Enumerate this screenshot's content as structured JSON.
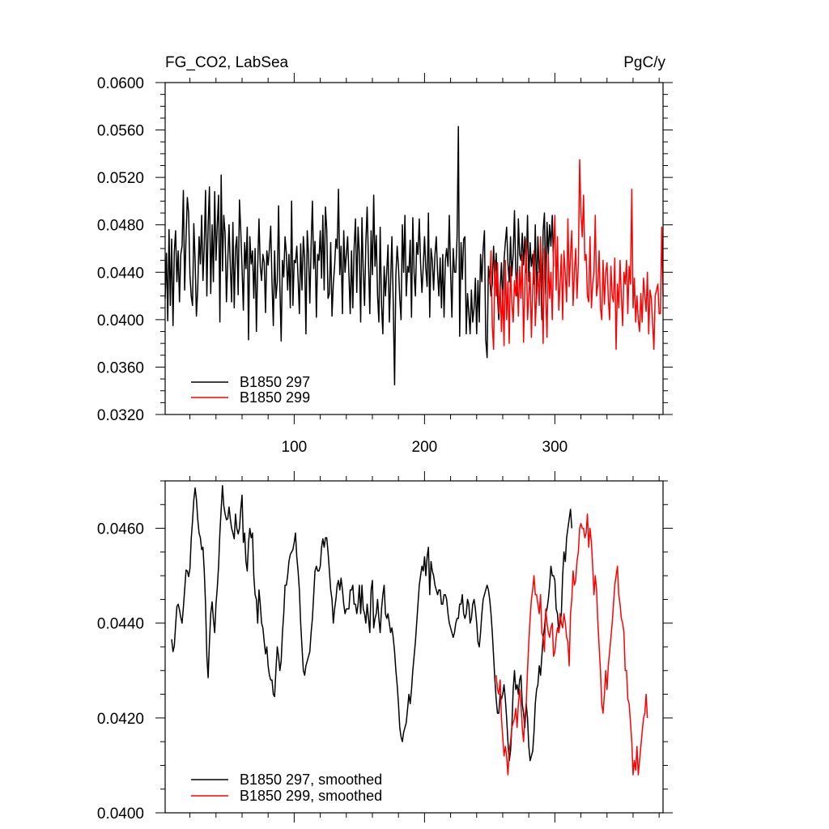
{
  "chart_data": [
    {
      "type": "line",
      "title_left": "FG_CO2, LabSea",
      "title_right": "PgC/y",
      "xlim": [
        1,
        383
      ],
      "ylim": [
        0.032,
        0.06
      ],
      "xticks": [
        {
          "value": 100,
          "label": "100"
        },
        {
          "value": 200,
          "label": "200"
        },
        {
          "value": 300,
          "label": "300"
        }
      ],
      "yticks": [
        {
          "value": 0.06,
          "label": "0.0600"
        },
        {
          "value": 0.056,
          "label": "0.0560"
        },
        {
          "value": 0.052,
          "label": "0.0520"
        },
        {
          "value": 0.048,
          "label": "0.0480"
        },
        {
          "value": 0.044,
          "label": "0.0440"
        },
        {
          "value": 0.04,
          "label": "0.0400"
        },
        {
          "value": 0.036,
          "label": "0.0360"
        },
        {
          "value": 0.032,
          "label": "0.0320"
        }
      ],
      "legend_position": "bottom-left",
      "series": [
        {
          "name": "B1850 297",
          "color": "#000000",
          "x_start": 1,
          "values": [
            0.0418,
            0.0456,
            0.0399,
            0.0476,
            0.0412,
            0.0468,
            0.0395,
            0.0457,
            0.0475,
            0.0432,
            0.0458,
            0.0415,
            0.0455,
            0.0462,
            0.0509,
            0.0425,
            0.047,
            0.0503,
            0.049,
            0.0438,
            0.042,
            0.0412,
            0.0481,
            0.045,
            0.0403,
            0.0425,
            0.047,
            0.0447,
            0.0488,
            0.0433,
            0.0462,
            0.0509,
            0.042,
            0.048,
            0.0512,
            0.0422,
            0.048,
            0.0432,
            0.0508,
            0.045,
            0.048,
            0.0505,
            0.0398,
            0.0522,
            0.0441,
            0.0488,
            0.0472,
            0.0415,
            0.0449,
            0.048,
            0.0445,
            0.0415,
            0.0482,
            0.041,
            0.046,
            0.047,
            0.0421,
            0.0501,
            0.0475,
            0.0443,
            0.0408,
            0.0465,
            0.0443,
            0.0478,
            0.0383,
            0.047,
            0.0447,
            0.0458,
            0.0418,
            0.046,
            0.039,
            0.0445,
            0.0485,
            0.0445,
            0.0433,
            0.0455,
            0.0448,
            0.0406,
            0.0458,
            0.0446,
            0.046,
            0.0479,
            0.0431,
            0.0395,
            0.0458,
            0.0418,
            0.0432,
            0.0496,
            0.0428,
            0.0382,
            0.045,
            0.0436,
            0.047,
            0.0456,
            0.0425,
            0.0455,
            0.041,
            0.05,
            0.0412,
            0.045,
            0.0448,
            0.0462,
            0.0435,
            0.0405,
            0.0464,
            0.0425,
            0.047,
            0.0452,
            0.0388,
            0.0475,
            0.0455,
            0.0414,
            0.0462,
            0.05,
            0.0443,
            0.0466,
            0.0402,
            0.0455,
            0.045,
            0.0475,
            0.0435,
            0.0488,
            0.0425,
            0.0495,
            0.0476,
            0.0418,
            0.0422,
            0.0465,
            0.0403,
            0.043,
            0.0445,
            0.0468,
            0.046,
            0.051,
            0.0438,
            0.0462,
            0.0405,
            0.0475,
            0.044,
            0.0455,
            0.047,
            0.0438,
            0.0405,
            0.0458,
            0.041,
            0.046,
            0.0485,
            0.0423,
            0.0478,
            0.0455,
            0.0398,
            0.0486,
            0.044,
            0.0412,
            0.0465,
            0.0495,
            0.0448,
            0.0405,
            0.0475,
            0.0438,
            0.0505,
            0.0445,
            0.0471,
            0.042,
            0.0398,
            0.0478,
            0.0412,
            0.0388,
            0.0445,
            0.042,
            0.044,
            0.0463,
            0.0398,
            0.0433,
            0.047,
            0.0415,
            0.0345,
            0.0438,
            0.0462,
            0.0445,
            0.0418,
            0.04,
            0.048,
            0.044,
            0.0488,
            0.042,
            0.0445,
            0.044,
            0.0467,
            0.0402,
            0.0486,
            0.044,
            0.042,
            0.0465,
            0.0455,
            0.0485,
            0.0448,
            0.0423,
            0.0445,
            0.047,
            0.0443,
            0.0428,
            0.049,
            0.0402,
            0.046,
            0.045,
            0.0425,
            0.0455,
            0.047,
            0.044,
            0.042,
            0.0452,
            0.041,
            0.0455,
            0.0402,
            0.045,
            0.046,
            0.0445,
            0.0488,
            0.044,
            0.0402,
            0.046,
            0.044,
            0.044,
            0.047,
            0.0563,
            0.0386,
            0.0465,
            0.0434,
            0.0468,
            0.047,
            0.0388,
            0.0422,
            0.0406,
            0.0388,
            0.0425,
            0.0398,
            0.041,
            0.0435,
            0.0388,
            0.0433,
            0.0398,
            0.0455,
            0.0432,
            0.046,
            0.0475,
            0.0383,
            0.0368,
            0.0445,
            0.0435,
            0.042,
            0.043,
            0.0462,
            0.0433,
            0.0456,
            0.042,
            0.04,
            0.0425,
            0.0448,
            0.0412,
            0.045,
            0.0465,
            0.0478,
            0.0448,
            0.0432,
            0.047,
            0.0437,
            0.0455,
            0.0492,
            0.044,
            0.042,
            0.0485,
            0.0455,
            0.045,
            0.0473,
            0.0446,
            0.047,
            0.044,
            0.0488,
            0.0432,
            0.0465,
            0.0445,
            0.0455,
            0.043,
            0.048,
            0.0418,
            0.047,
            0.044,
            0.0456,
            0.04,
            0.0475,
            0.049,
            0.0422,
            0.0482,
            0.0455,
            0.048,
            0.0462,
            0.0488,
            0.0445
          ]
        },
        {
          "name": "B1850 299",
          "color": "#ff0000",
          "x_start": 250,
          "values": [
            0.043,
            0.0458,
            0.0395,
            0.0375,
            0.045,
            0.042,
            0.0448,
            0.0405,
            0.043,
            0.039,
            0.0425,
            0.0378,
            0.045,
            0.04,
            0.0432,
            0.038,
            0.0445,
            0.0415,
            0.0398,
            0.0433,
            0.042,
            0.044,
            0.0403,
            0.0445,
            0.0418,
            0.0455,
            0.0381,
            0.0428,
            0.0468,
            0.04,
            0.042,
            0.044,
            0.0385,
            0.0425,
            0.0458,
            0.0395,
            0.042,
            0.044,
            0.0412,
            0.047,
            0.043,
            0.038,
            0.046,
            0.042,
            0.0385,
            0.0455,
            0.0418,
            0.044,
            0.04,
            0.0458,
            0.0488,
            0.0425,
            0.047,
            0.0408,
            0.043,
            0.0455,
            0.04,
            0.0458,
            0.0438,
            0.0415,
            0.0485,
            0.0428,
            0.0455,
            0.0475,
            0.0412,
            0.044,
            0.046,
            0.0418,
            0.0448,
            0.0535,
            0.049,
            0.047,
            0.0505,
            0.045,
            0.0455,
            0.042,
            0.0415,
            0.047,
            0.041,
            0.043,
            0.044,
            0.0488,
            0.042,
            0.043,
            0.0458,
            0.041,
            0.04,
            0.045,
            0.0413,
            0.044,
            0.0448,
            0.0418,
            0.04,
            0.0445,
            0.042,
            0.0415,
            0.0452,
            0.0375,
            0.043,
            0.041,
            0.045,
            0.042,
            0.0395,
            0.044,
            0.043,
            0.045,
            0.0405,
            0.0445,
            0.043,
            0.051,
            0.041,
            0.0435,
            0.0398,
            0.042,
            0.04,
            0.039,
            0.0422,
            0.0398,
            0.0435,
            0.042,
            0.0407,
            0.044,
            0.0388,
            0.0425,
            0.0418,
            0.0398,
            0.0375,
            0.042,
            0.0425,
            0.043,
            0.0405,
            0.0405,
            0.0478,
            0.042
          ]
        }
      ]
    },
    {
      "type": "line",
      "xlim": [
        1,
        383
      ],
      "ylim": [
        0.04,
        0.047
      ],
      "yticks": [
        {
          "value": 0.046,
          "label": "0.0460"
        },
        {
          "value": 0.044,
          "label": "0.0440"
        },
        {
          "value": 0.042,
          "label": "0.0420"
        },
        {
          "value": 0.04,
          "label": "0.0400"
        }
      ],
      "legend_position": "bottom-left",
      "series": [
        {
          "name": "B1850 297, smoothed",
          "color": "#000000",
          "x_start": 6,
          "values": [
            0.04366,
            0.0434,
            0.04352,
            0.04395,
            0.04435,
            0.0444,
            0.04428,
            0.04412,
            0.044,
            0.04433,
            0.0447,
            0.04512,
            0.0451,
            0.04498,
            0.04515,
            0.04578,
            0.04615,
            0.0466,
            0.04685,
            0.04662,
            0.0462,
            0.0459,
            0.0458,
            0.04555,
            0.0456,
            0.0451,
            0.0444,
            0.0433,
            0.04285,
            0.0436,
            0.0442,
            0.04445,
            0.04408,
            0.0438,
            0.0444,
            0.04475,
            0.0452,
            0.0459,
            0.0464,
            0.0469,
            0.04648,
            0.0463,
            0.04618,
            0.0462,
            0.04645,
            0.0462,
            0.046,
            0.0459,
            0.04578,
            0.0463,
            0.046,
            0.04588,
            0.046,
            0.0464,
            0.0467,
            0.0457,
            0.0459,
            0.0453,
            0.0451,
            0.0457,
            0.046,
            0.0458,
            0.0459,
            0.045,
            0.0446,
            0.0445,
            0.044,
            0.0447,
            0.0444,
            0.044,
            0.0439,
            0.0436,
            0.04335,
            0.0435,
            0.0431,
            0.0429,
            0.0428,
            0.0428,
            0.0425,
            0.04245,
            0.043,
            0.0435,
            0.0433,
            0.043,
            0.0432,
            0.0438,
            0.0442,
            0.0448,
            0.0448,
            0.045,
            0.0453,
            0.04545,
            0.0455,
            0.04555,
            0.0457,
            0.0459,
            0.0454,
            0.0451,
            0.0447,
            0.044,
            0.0435,
            0.043,
            0.0429,
            0.0431,
            0.0432,
            0.0433,
            0.0434,
            0.0438,
            0.0441,
            0.0446,
            0.0451,
            0.0452,
            0.0451,
            0.0451,
            0.0452,
            0.0456,
            0.04578,
            0.0456,
            0.0458,
            0.0458,
            0.0455,
            0.0451,
            0.0447,
            0.0445,
            0.044,
            0.0443,
            0.0445,
            0.0448,
            0.0449,
            0.0447,
            0.04495,
            0.0447,
            0.0444,
            0.0442,
            0.0443,
            0.0443,
            0.0443,
            0.0447,
            0.0447,
            0.0448,
            0.0444,
            0.0444,
            0.0442,
            0.0444,
            0.0448,
            0.0442,
            0.0448,
            0.0443,
            0.0442,
            0.044,
            0.0444,
            0.0441,
            0.0438,
            0.0447,
            0.0449,
            0.0439,
            0.0441,
            0.0442,
            0.0445,
            0.0441,
            0.0438,
            0.0443,
            0.0446,
            0.0448,
            0.0442,
            0.0441,
            0.0442,
            0.044,
            0.0438,
            0.0439,
            0.0437,
            0.0434,
            0.043,
            0.0427,
            0.0423,
            0.0418,
            0.0416,
            0.0415,
            0.0417,
            0.0418,
            0.0419,
            0.0422,
            0.0425,
            0.0423,
            0.0426,
            0.043,
            0.0433,
            0.0436,
            0.044,
            0.0444,
            0.0448,
            0.045,
            0.0452,
            0.0451,
            0.0454,
            0.045,
            0.0454,
            0.0456,
            0.0446,
            0.0453,
            0.0451,
            0.045,
            0.0448,
            0.0447,
            0.0446,
            0.0447,
            0.0447,
            0.0444,
            0.0444,
            0.0446,
            0.0446,
            0.0445,
            0.0442,
            0.044,
            0.0439,
            0.0438,
            0.0437,
            0.0438,
            0.044,
            0.0441,
            0.0441,
            0.0444,
            0.0444,
            0.0446,
            0.0442,
            0.0441,
            0.0442,
            0.0445,
            0.0444,
            0.044,
            0.0441,
            0.0444,
            0.0445,
            0.0443,
            0.044,
            0.0436,
            0.0435,
            0.0438,
            0.0442,
            0.0445,
            0.0446,
            0.0447,
            0.0448,
            0.0447,
            0.0445,
            0.0442,
            0.0438,
            0.0433,
            0.0428,
            0.0424,
            0.0421,
            0.0421,
            0.0425,
            0.0424,
            0.0425,
            0.0427,
            0.0424,
            0.042,
            0.0415,
            0.0411,
            0.0413,
            0.0418,
            0.0426,
            0.043,
            0.0426,
            0.0427,
            0.0425,
            0.0428,
            0.0429,
            0.0423,
            0.0421,
            0.0418,
            0.0423,
            0.042,
            0.0414,
            0.0411,
            0.0412,
            0.0413,
            0.0417,
            0.0423,
            0.0426,
            0.0427,
            0.0431,
            0.0429,
            0.0433,
            0.0437,
            0.0439,
            0.0442,
            0.0443,
            0.0445,
            0.0448,
            0.0452,
            0.045,
            0.045,
            0.0449,
            0.0443,
            0.0442,
            0.0438,
            0.044,
            0.0442,
            0.045,
            0.0455,
            0.0453,
            0.0458,
            0.046,
            0.0462,
            0.0464,
            0.046
          ]
        },
        {
          "name": "B1850 299, smoothed",
          "color": "#ff0000",
          "x_start": 255,
          "values": [
            0.0429,
            0.0426,
            0.0425,
            0.0428,
            0.042,
            0.0416,
            0.0412,
            0.0414,
            0.0412,
            0.0408,
            0.0413,
            0.0415,
            0.0418,
            0.0419,
            0.042,
            0.0422,
            0.0418,
            0.0423,
            0.0426,
            0.0423,
            0.0418,
            0.0415,
            0.042,
            0.0423,
            0.043,
            0.0436,
            0.0441,
            0.0445,
            0.0447,
            0.045,
            0.0446,
            0.0446,
            0.0444,
            0.0442,
            0.0446,
            0.0438,
            0.0437,
            0.0434,
            0.0443,
            0.044,
            0.0438,
            0.0437,
            0.0439,
            0.044,
            0.0433,
            0.0434,
            0.0437,
            0.0439,
            0.0438,
            0.0442,
            0.044,
            0.0439,
            0.0442,
            0.044,
            0.0437,
            0.0436,
            0.0431,
            0.0442,
            0.0445,
            0.0451,
            0.0448,
            0.0449,
            0.0453,
            0.0455,
            0.046,
            0.0461,
            0.046,
            0.046,
            0.0458,
            0.0459,
            0.0463,
            0.0456,
            0.046,
            0.0457,
            0.0452,
            0.0446,
            0.045,
            0.0447,
            0.044,
            0.0435,
            0.043,
            0.0423,
            0.0421,
            0.0425,
            0.043,
            0.0426,
            0.0431,
            0.0434,
            0.0437,
            0.044,
            0.0444,
            0.0448,
            0.045,
            0.0452,
            0.0446,
            0.0444,
            0.0441,
            0.044,
            0.0438,
            0.043,
            0.043,
            0.0424,
            0.0423,
            0.0419,
            0.0415,
            0.0408,
            0.0411,
            0.0409,
            0.0414,
            0.0408,
            0.0411,
            0.0414,
            0.0417,
            0.042,
            0.0421,
            0.0425,
            0.042
          ]
        }
      ]
    }
  ]
}
